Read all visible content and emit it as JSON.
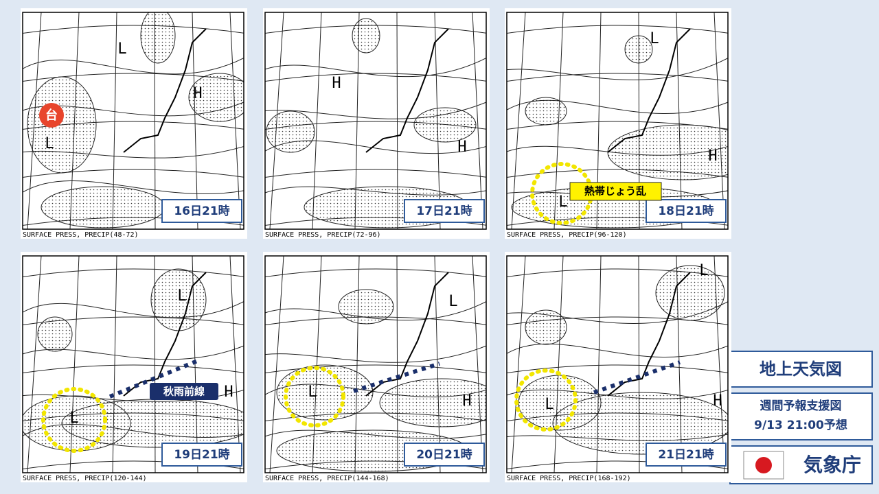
{
  "panels": [
    {
      "time": "16日21時",
      "caption": "SURFACE PRESS, PRECIP(48-72)",
      "symbols": [
        "L",
        "H",
        "L"
      ]
    },
    {
      "time": "17日21時",
      "caption": "SURFACE PRESS, PRECIP(72-96)",
      "symbols": [
        "H",
        "H"
      ]
    },
    {
      "time": "18日21時",
      "caption": "SURFACE PRESS, PRECIP(96-120)",
      "symbols": [
        "L",
        "H",
        "L"
      ]
    },
    {
      "time": "19日21時",
      "caption": "SURFACE PRESS, PRECIP(120-144)",
      "symbols": [
        "L",
        "L",
        "H"
      ]
    },
    {
      "time": "20日21時",
      "caption": "SURFACE PRESS, PRECIP(144-168)",
      "symbols": [
        "L",
        "H",
        "L"
      ]
    },
    {
      "time": "21日21時",
      "caption": "SURFACE PRESS, PRECIP(168-192)",
      "symbols": [
        "L",
        "H",
        "L"
      ]
    }
  ],
  "annotations": {
    "typhoon": "台",
    "tropical_disturbance": "熱帯じょう乱",
    "autumn_front": "秋雨前線"
  },
  "sidebar": {
    "title": "地上天気図",
    "subtitle": "週間予報支援図",
    "forecast": "9/13 21:00予想",
    "agency": "気象庁"
  }
}
